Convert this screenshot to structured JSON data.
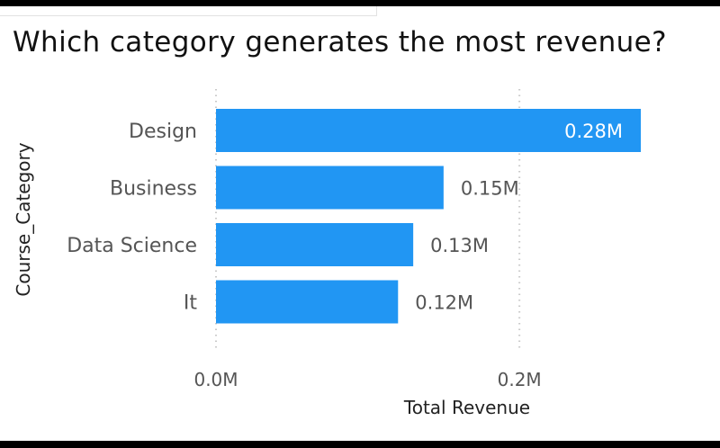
{
  "title": "Which category generates the most revenue?",
  "chart_data": {
    "type": "bar",
    "orientation": "horizontal",
    "title": "Which category generates the most revenue?",
    "categories": [
      "Design",
      "Business",
      "Data Science",
      "It"
    ],
    "values": [
      0.28,
      0.15,
      0.13,
      0.12
    ],
    "value_labels": [
      "0.28M",
      "0.15M",
      "0.13M",
      "0.12M"
    ],
    "unit": "M",
    "xlabel": "Total Revenue",
    "ylabel": "Course_Category",
    "xlim": [
      0,
      0.28
    ],
    "x_ticks": [
      0,
      0.2
    ],
    "x_tick_labels": [
      "0.0M",
      "0.2M"
    ],
    "grid": "vertical dotted",
    "bar_color": "#2196f3",
    "inside_label_color": "#ffffff",
    "outside_label_color": "#555555"
  }
}
